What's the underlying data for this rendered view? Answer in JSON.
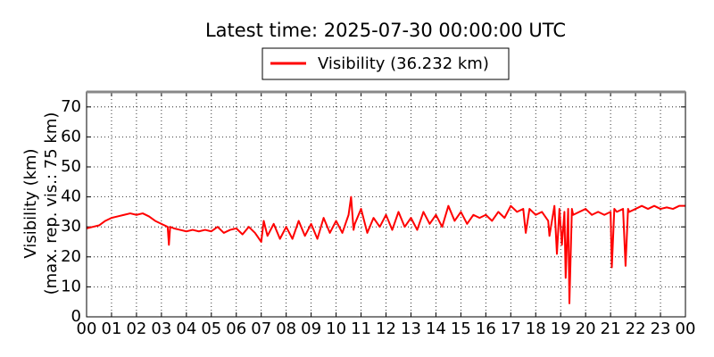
{
  "chart_data": {
    "type": "line",
    "title": "Latest time: 2025-07-30 00:00:00 UTC",
    "ylabel": "Visibility (km)",
    "ylabel2": "(max. rep. vis.: 75 km)",
    "x": [
      0,
      0.25,
      0.5,
      0.75,
      1,
      1.25,
      1.5,
      1.75,
      2,
      2.25,
      2.5,
      2.75,
      3,
      3.25,
      3.3,
      3.35,
      3.5,
      3.75,
      4,
      4.25,
      4.5,
      4.75,
      5,
      5.25,
      5.5,
      5.75,
      6,
      6.25,
      6.5,
      6.75,
      7,
      7.1,
      7.25,
      7.5,
      7.75,
      8,
      8.25,
      8.5,
      8.75,
      9,
      9.25,
      9.5,
      9.75,
      10,
      10.25,
      10.5,
      10.6,
      10.7,
      10.75,
      11,
      11.25,
      11.5,
      11.75,
      12,
      12.25,
      12.5,
      12.75,
      13,
      13.25,
      13.5,
      13.75,
      14,
      14.25,
      14.5,
      14.75,
      15,
      15.25,
      15.5,
      15.75,
      16,
      16.25,
      16.5,
      16.75,
      17,
      17.25,
      17.5,
      17.6,
      17.75,
      18,
      18.25,
      18.5,
      18.55,
      18.75,
      18.85,
      18.95,
      19.05,
      19.15,
      19.2,
      19.3,
      19.35,
      19.45,
      19.5,
      19.75,
      20,
      20.25,
      20.5,
      20.75,
      21,
      21.05,
      21.15,
      21.25,
      21.5,
      21.6,
      21.7,
      21.75,
      22,
      22.25,
      22.5,
      22.75,
      23,
      23.25,
      23.5,
      23.75,
      24
    ],
    "series": [
      {
        "name": "Visibility (36.232 km)",
        "color": "#ff0000",
        "values": [
          29.5,
          30,
          30.5,
          32,
          33,
          33.5,
          34,
          34.5,
          34,
          34.5,
          33.5,
          32,
          31,
          30,
          24,
          30,
          29.5,
          29,
          28.5,
          29,
          28.5,
          29,
          28.5,
          30,
          28,
          29,
          29.5,
          27.5,
          30,
          28,
          25,
          32,
          27,
          31,
          26,
          30,
          26,
          32,
          27,
          31,
          26,
          33,
          28,
          32,
          28,
          34,
          40,
          29,
          31,
          36,
          28,
          33,
          30,
          34,
          29,
          35,
          30,
          33,
          29,
          35,
          31,
          34,
          30,
          37,
          32,
          35,
          31,
          34,
          33,
          34,
          32,
          35,
          33,
          37,
          35,
          36,
          28,
          36,
          34,
          35,
          32,
          27,
          37,
          21,
          36,
          24,
          35,
          13,
          36,
          4.5,
          36,
          34,
          35,
          36,
          34,
          35,
          34,
          35,
          16.5,
          36,
          35,
          36,
          17,
          36,
          35,
          36,
          37,
          36,
          37,
          36,
          36.5,
          36,
          37,
          37
        ]
      }
    ],
    "xlim": [
      0,
      24
    ],
    "xticks": [
      {
        "value": 0,
        "label": "00"
      },
      {
        "value": 1,
        "label": "01"
      },
      {
        "value": 2,
        "label": "02"
      },
      {
        "value": 3,
        "label": "03"
      },
      {
        "value": 4,
        "label": "04"
      },
      {
        "value": 5,
        "label": "05"
      },
      {
        "value": 6,
        "label": "06"
      },
      {
        "value": 7,
        "label": "07"
      },
      {
        "value": 8,
        "label": "08"
      },
      {
        "value": 9,
        "label": "09"
      },
      {
        "value": 10,
        "label": "10"
      },
      {
        "value": 11,
        "label": "11"
      },
      {
        "value": 12,
        "label": "12"
      },
      {
        "value": 13,
        "label": "13"
      },
      {
        "value": 14,
        "label": "14"
      },
      {
        "value": 15,
        "label": "15"
      },
      {
        "value": 16,
        "label": "16"
      },
      {
        "value": 17,
        "label": "17"
      },
      {
        "value": 18,
        "label": "18"
      },
      {
        "value": 19,
        "label": "19"
      },
      {
        "value": 20,
        "label": "20"
      },
      {
        "value": 21,
        "label": "21"
      },
      {
        "value": 22,
        "label": "22"
      },
      {
        "value": 23,
        "label": "23"
      },
      {
        "value": 24,
        "label": "00"
      }
    ],
    "ylim": [
      0,
      75
    ],
    "yticks": [
      0,
      10,
      20,
      30,
      40,
      50,
      60,
      70
    ],
    "grid": true
  }
}
